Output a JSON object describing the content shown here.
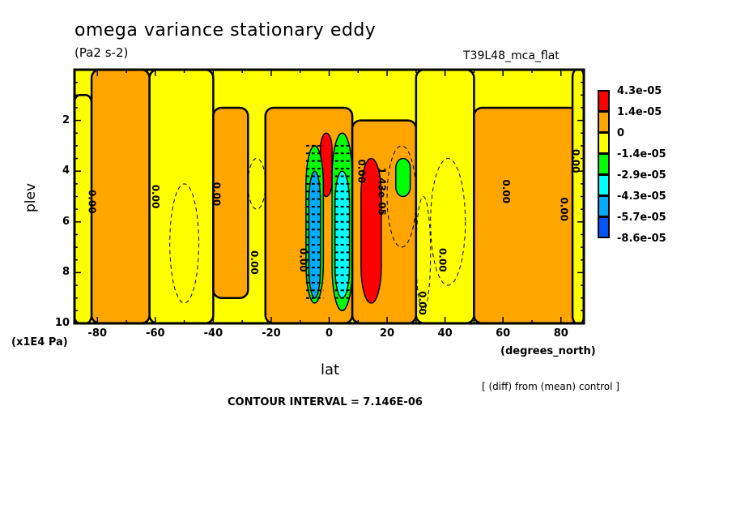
{
  "header": {
    "title": "omega variance stationary eddy",
    "units": "(Pa2 s-2)",
    "run_name": "T39L48_mca_flat"
  },
  "footer": {
    "diff_note": "[ (diff) from (mean) control ]",
    "contour_interval": "CONTOUR INTERVAL = 7.146E-06"
  },
  "chart_data": {
    "type": "heatmap",
    "subtype": "filled-contour",
    "title": "omega variance stationary eddy",
    "subtitle": "(Pa2 s-2)",
    "run_label": "T39L48_mca_flat",
    "xlabel": "lat",
    "xunits": "(degrees_north)",
    "ylabel": "plev",
    "yunits": "(x1E4 Pa)",
    "xlim": [
      -87.9,
      87.9
    ],
    "ylim": [
      10,
      0
    ],
    "y_inverted": true,
    "xticks": [
      -80,
      -60,
      -40,
      -20,
      0,
      20,
      40,
      60,
      80
    ],
    "xtick_labels": [
      "-80",
      "-60",
      "-40",
      "-20",
      "0",
      "20",
      "40",
      "60",
      "80"
    ],
    "yticks": [
      2,
      4,
      6,
      8,
      10
    ],
    "ytick_labels": [
      "2",
      "4",
      "6",
      "8",
      "10"
    ],
    "contour_interval": 7.146e-06,
    "contour_labels": [
      "0.00",
      "1.43e-05"
    ],
    "note": "[ (diff) from (mean) control ]",
    "colorbar": {
      "placement": "right",
      "levels": [
        {
          "label": "4.3e-05",
          "color": "#ff0000"
        },
        {
          "label": "1.4e-05",
          "color": "#ffa500"
        },
        {
          "label": "0",
          "color": "#ffff00"
        },
        {
          "label": "-1.4e-05",
          "color": "#00ff00"
        },
        {
          "label": "-2.9e-05",
          "color": "#00ffff"
        },
        {
          "label": "-4.3e-05",
          "color": "#00aaff"
        },
        {
          "label": "-5.7e-05",
          "color": "#0055ff"
        },
        {
          "label": "-8.6e-05",
          "color": ""
        }
      ]
    },
    "regions": [
      {
        "name": "west-yellow-edge",
        "lat": [
          -88,
          -82
        ],
        "plev": [
          1,
          10
        ],
        "class": "0"
      },
      {
        "name": "sh-orange-band",
        "lat": [
          -82,
          -62
        ],
        "plev": [
          0,
          10
        ],
        "class": "1.4e-05"
      },
      {
        "name": "sh-yellow-band",
        "lat": [
          -62,
          -40
        ],
        "plev": [
          0,
          10
        ],
        "class": "0"
      },
      {
        "name": "sh-mid-orange",
        "lat": [
          -40,
          -28
        ],
        "plev": [
          1.5,
          9
        ],
        "class": "1.4e-05"
      },
      {
        "name": "tropical-orange",
        "lat": [
          -22,
          8
        ],
        "plev": [
          1.5,
          10
        ],
        "class": "1.4e-05"
      },
      {
        "name": "red-peak-south",
        "lat": [
          -3,
          1
        ],
        "plev": [
          2.5,
          5
        ],
        "class": "4.3e-05"
      },
      {
        "name": "green-minimum-south",
        "lat": [
          -8,
          -2
        ],
        "plev": [
          3,
          9.2
        ],
        "class": "-1.4e-05"
      },
      {
        "name": "blue-core-south",
        "lat": [
          -7,
          -3
        ],
        "plev": [
          4,
          9
        ],
        "class": "-4.3e-05"
      },
      {
        "name": "green-minimum-north",
        "lat": [
          1,
          8
        ],
        "plev": [
          2.5,
          9.5
        ],
        "class": "-1.4e-05"
      },
      {
        "name": "cyan-core-north",
        "lat": [
          2,
          7
        ],
        "plev": [
          4,
          9
        ],
        "class": "-2.9e-05"
      },
      {
        "name": "nh-orange-band",
        "lat": [
          8,
          30
        ],
        "plev": [
          2,
          10
        ],
        "class": "1.4e-05"
      },
      {
        "name": "red-peak-north",
        "lat": [
          11,
          18
        ],
        "plev": [
          3.5,
          9.2
        ],
        "class": "4.3e-05"
      },
      {
        "name": "green-spot-25N",
        "lat": [
          23,
          28
        ],
        "plev": [
          3.5,
          5
        ],
        "class": "-1.4e-05"
      },
      {
        "name": "nh-yellow-band",
        "lat": [
          30,
          50
        ],
        "plev": [
          0,
          10
        ],
        "class": "0"
      },
      {
        "name": "nh-orange-high-lat",
        "lat": [
          50,
          86
        ],
        "plev": [
          1.5,
          10
        ],
        "class": "1.4e-05"
      },
      {
        "name": "east-yellow-edge",
        "lat": [
          84,
          88
        ],
        "plev": [
          0,
          10
        ],
        "class": "0"
      }
    ]
  }
}
